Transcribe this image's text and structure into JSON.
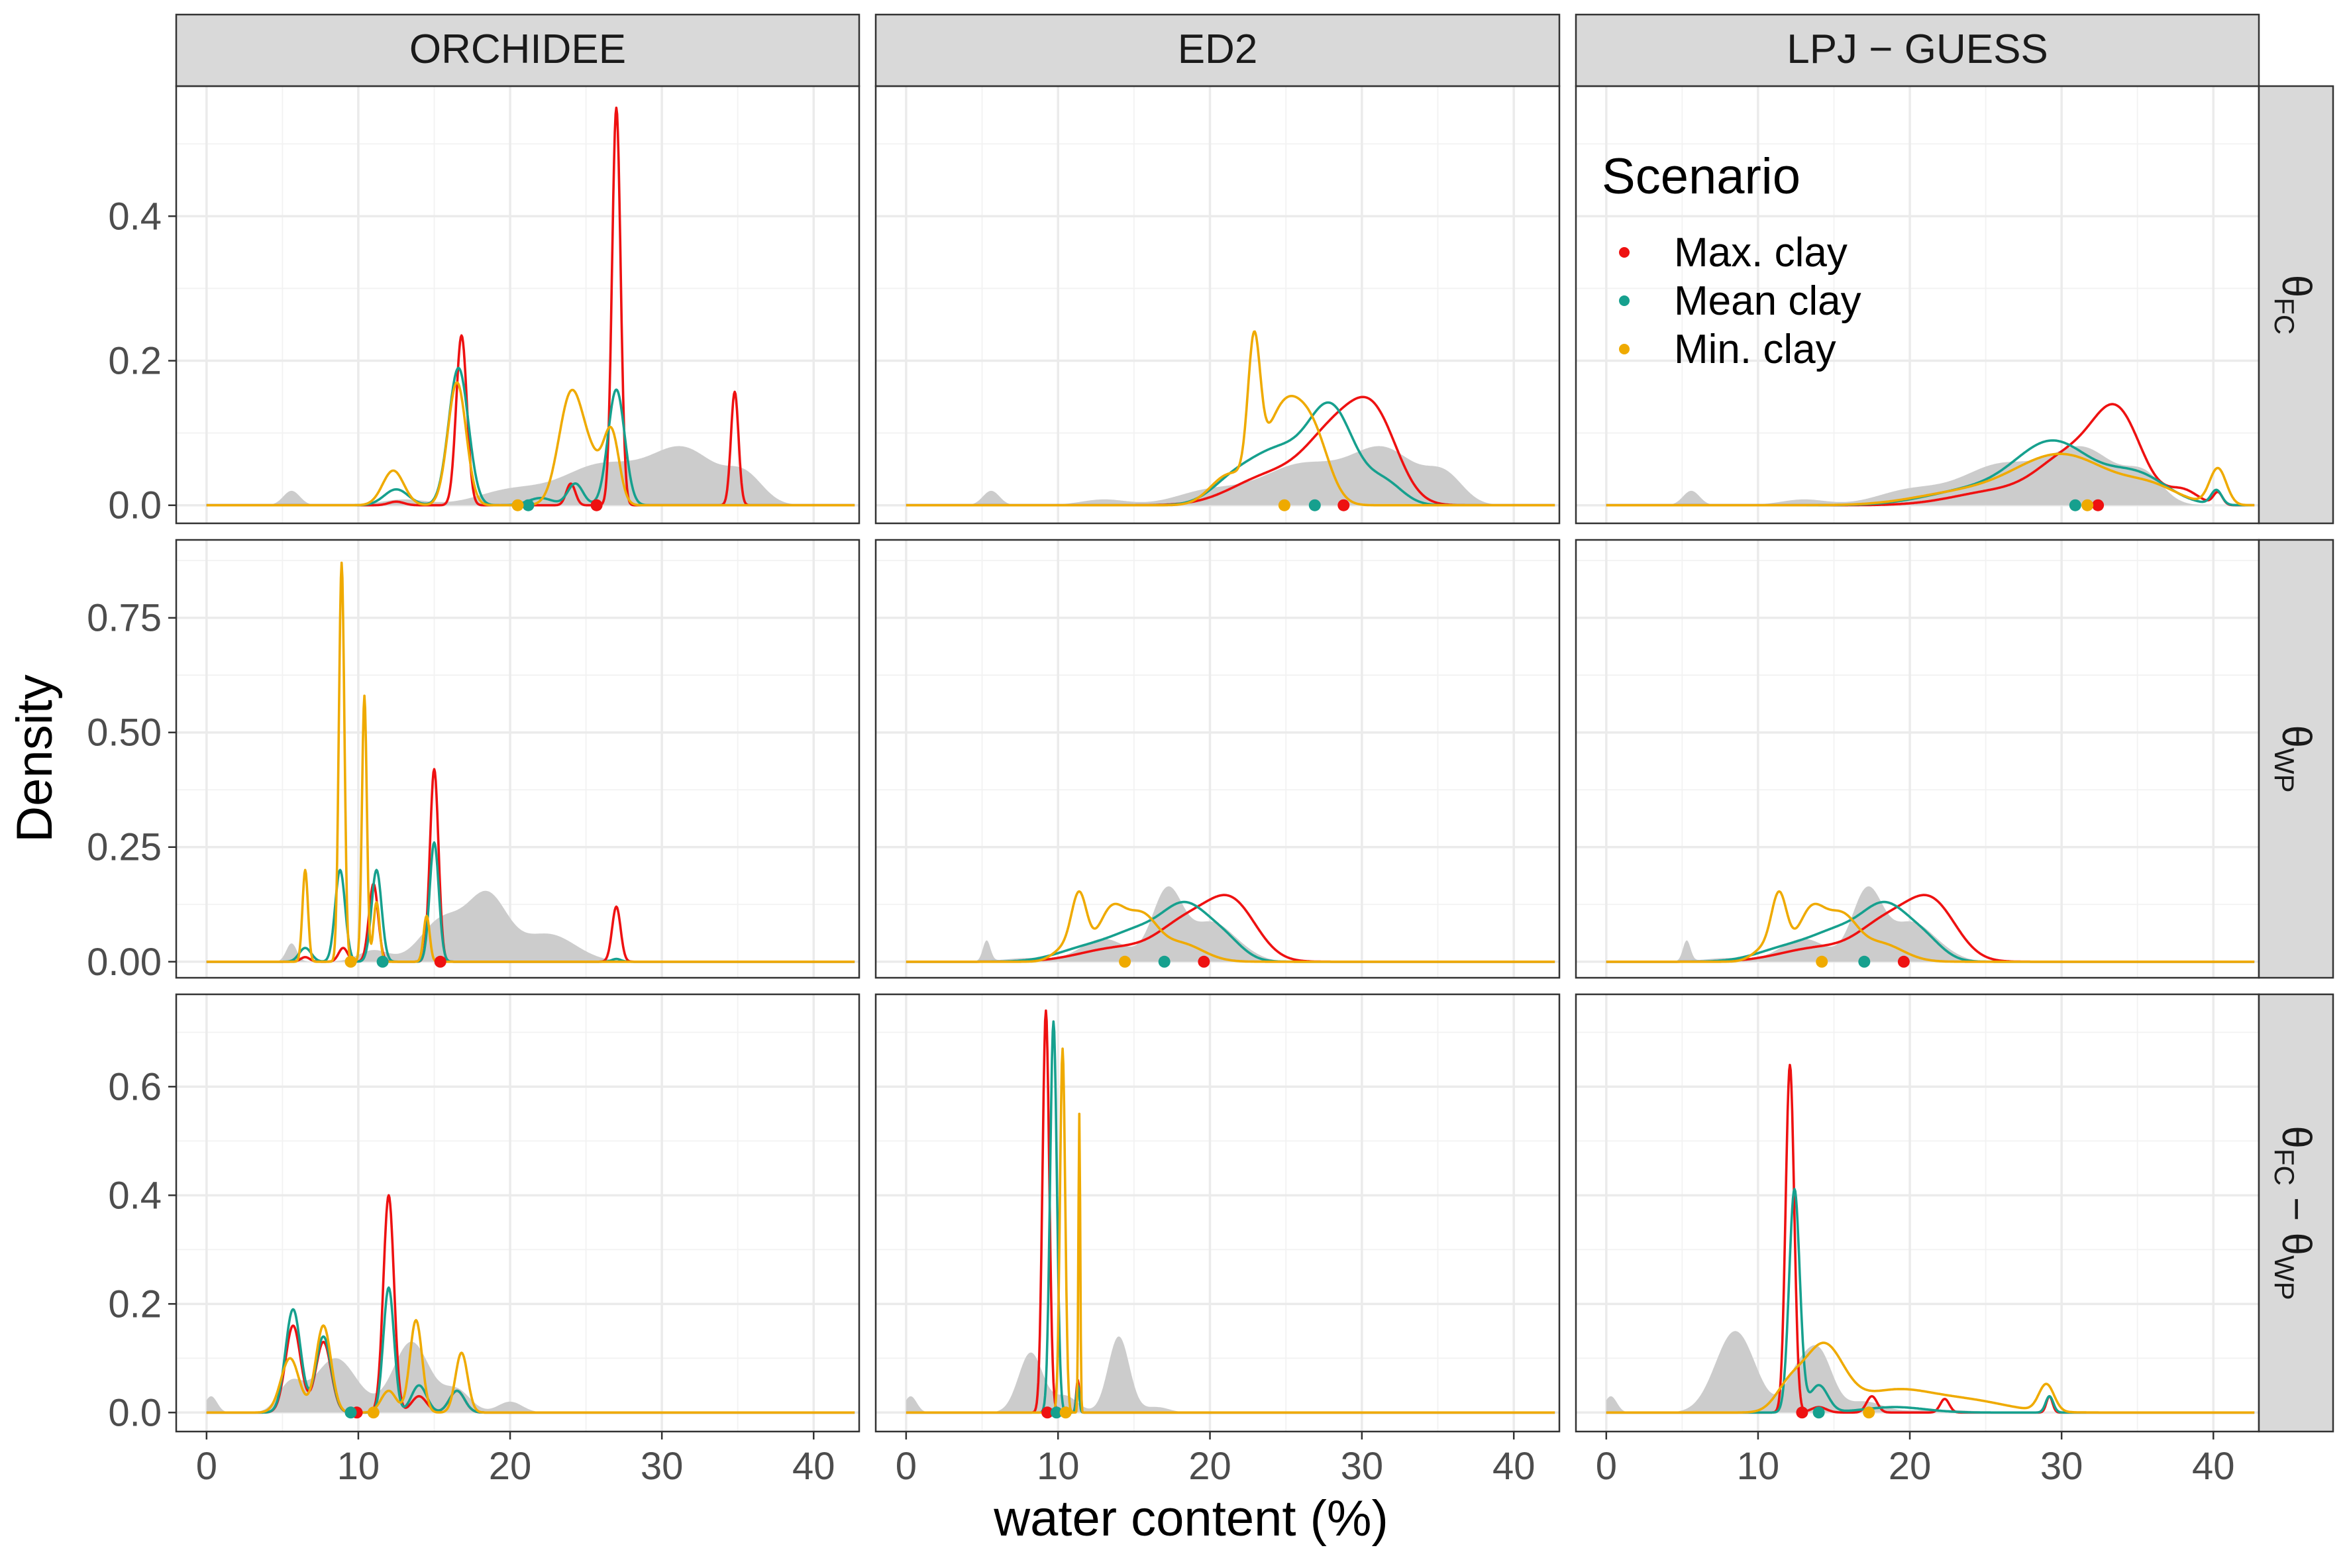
{
  "chart_data": {
    "type": "line",
    "xlabel": "water content (%)",
    "ylabel": "Density",
    "columns": [
      "ORCHIDEE",
      "ED2",
      "LPJ − GUESS"
    ],
    "rows": [
      {
        "label": "θFC",
        "base": "θ",
        "sub": "FC"
      },
      {
        "label": "θWP",
        "base": "θ",
        "sub": "WP"
      },
      {
        "label": "θFC − θWP",
        "base": "θ",
        "sub": "FC",
        "mid": " − θ",
        "sub2": "WP"
      }
    ],
    "xlim": [
      -2,
      43
    ],
    "x_ticks": [
      0,
      10,
      20,
      30,
      40
    ],
    "x_tick_labels": [
      "0",
      "10",
      "20",
      "30",
      "40"
    ],
    "y_scales": [
      {
        "ylim": [
          -0.025,
          0.58
        ],
        "ticks": [
          0.0,
          0.2,
          0.4
        ],
        "tick_labels": [
          "0.0",
          "0.2",
          "0.4"
        ],
        "minor": [
          0.1,
          0.3,
          0.5
        ]
      },
      {
        "ylim": [
          -0.035,
          0.92
        ],
        "ticks": [
          0.0,
          0.25,
          0.5,
          0.75
        ],
        "tick_labels": [
          "0.00",
          "0.25",
          "0.50",
          "0.75"
        ],
        "minor": [
          0.125,
          0.375,
          0.625,
          0.875
        ]
      },
      {
        "ylim": [
          -0.035,
          0.77
        ],
        "ticks": [
          0.0,
          0.2,
          0.4,
          0.6
        ],
        "tick_labels": [
          "0.0",
          "0.2",
          "0.4",
          "0.6"
        ],
        "minor": [
          0.1,
          0.3,
          0.5,
          0.7
        ]
      }
    ],
    "legend": {
      "title": "Scenario",
      "position": "inside, top-right panel",
      "items": [
        {
          "label": "Max. clay",
          "color": "#ee1111"
        },
        {
          "label": "Mean clay",
          "color": "#16a08e"
        },
        {
          "label": "Min. clay",
          "color": "#efaa00"
        }
      ]
    },
    "colors": {
      "max": "#ee1111",
      "mean": "#16a08e",
      "min": "#efaa00",
      "reference": "#cccccc"
    },
    "panels": [
      {
        "col": 0,
        "row": 0,
        "reference": [
          [
            5.6,
            0.02,
            0.55
          ],
          [
            13,
            0.008,
            1.5
          ],
          [
            20,
            0.02,
            2.2
          ],
          [
            26,
            0.055,
            2.6
          ],
          [
            31.5,
            0.075,
            2.2
          ],
          [
            35.5,
            0.035,
            1.2
          ]
        ],
        "max": [
          [
            12.5,
            0.005,
            0.5
          ],
          [
            16.8,
            0.235,
            0.35
          ],
          [
            24,
            0.03,
            0.3
          ],
          [
            27,
            0.55,
            0.28
          ],
          [
            34.8,
            0.157,
            0.25
          ]
        ],
        "mean": [
          [
            12.5,
            0.022,
            0.8
          ],
          [
            16.6,
            0.19,
            0.65
          ],
          [
            22,
            0.01,
            0.8
          ],
          [
            24.3,
            0.03,
            0.5
          ],
          [
            27,
            0.16,
            0.55
          ]
        ],
        "min": [
          [
            12.3,
            0.048,
            0.7
          ],
          [
            16.5,
            0.17,
            0.6
          ],
          [
            24,
            0.15,
            0.8
          ],
          [
            25.5,
            0.05,
            0.8
          ],
          [
            26.7,
            0.09,
            0.5
          ]
        ],
        "markers": [
          {
            "series": "max",
            "x": 25.7
          },
          {
            "series": "mean",
            "x": 21.2
          },
          {
            "series": "min",
            "x": 20.5
          }
        ]
      },
      {
        "col": 1,
        "row": 0,
        "reference": [
          [
            5.6,
            0.02,
            0.55
          ],
          [
            13,
            0.008,
            1.5
          ],
          [
            20,
            0.02,
            2.2
          ],
          [
            26,
            0.055,
            2.6
          ],
          [
            31.5,
            0.075,
            2.2
          ],
          [
            35.5,
            0.035,
            1.2
          ]
        ],
        "max": [
          [
            24,
            0.04,
            2.5
          ],
          [
            28.5,
            0.1,
            2.0
          ],
          [
            31,
            0.09,
            1.5
          ]
        ],
        "mean": [
          [
            21.5,
            0.03,
            1.5
          ],
          [
            24.5,
            0.07,
            1.8
          ],
          [
            28,
            0.13,
            1.5
          ],
          [
            31.5,
            0.03,
            1.2
          ]
        ],
        "min": [
          [
            21.2,
            0.04,
            1.2
          ],
          [
            22.9,
            0.18,
            0.4
          ],
          [
            25,
            0.14,
            1.4
          ],
          [
            27,
            0.06,
            1.0
          ]
        ],
        "markers": [
          {
            "series": "max",
            "x": 28.8
          },
          {
            "series": "mean",
            "x": 26.9
          },
          {
            "series": "min",
            "x": 24.9
          }
        ]
      },
      {
        "col": 2,
        "row": 0,
        "reference": [
          [
            5.6,
            0.02,
            0.55
          ],
          [
            13,
            0.008,
            1.5
          ],
          [
            20,
            0.02,
            2.2
          ],
          [
            26,
            0.055,
            2.6
          ],
          [
            31.5,
            0.075,
            2.2
          ],
          [
            35.5,
            0.035,
            1.2
          ]
        ],
        "max": [
          [
            26,
            0.02,
            3.0
          ],
          [
            30.5,
            0.06,
            2.0
          ],
          [
            33.7,
            0.12,
            1.6
          ],
          [
            38,
            0.02,
            1.0
          ],
          [
            40.3,
            0.017,
            0.3
          ]
        ],
        "mean": [
          [
            24,
            0.02,
            3.0
          ],
          [
            29.5,
            0.085,
            2.5
          ],
          [
            35,
            0.04,
            2.0
          ],
          [
            40.2,
            0.02,
            0.35
          ]
        ],
        "min": [
          [
            23,
            0.015,
            3.0
          ],
          [
            30,
            0.07,
            3.2
          ],
          [
            36,
            0.02,
            1.8
          ],
          [
            40.3,
            0.05,
            0.55
          ]
        ],
        "markers": [
          {
            "series": "max",
            "x": 32.4
          },
          {
            "series": "mean",
            "x": 30.9
          },
          {
            "series": "min",
            "x": 31.7
          }
        ]
      },
      {
        "col": 0,
        "row": 1,
        "reference": [
          [
            5.6,
            0.04,
            0.35
          ],
          [
            11,
            0.025,
            1.0
          ],
          [
            15.5,
            0.09,
            1.4
          ],
          [
            18.5,
            0.14,
            1.3
          ],
          [
            22.5,
            0.06,
            1.8
          ]
        ],
        "max": [
          [
            6.5,
            0.01,
            0.3
          ],
          [
            9,
            0.03,
            0.3
          ],
          [
            11,
            0.17,
            0.3
          ],
          [
            15,
            0.42,
            0.28
          ],
          [
            27,
            0.12,
            0.28
          ]
        ],
        "mean": [
          [
            6.5,
            0.03,
            0.4
          ],
          [
            8.8,
            0.2,
            0.33
          ],
          [
            11.2,
            0.2,
            0.33
          ],
          [
            15,
            0.26,
            0.3
          ],
          [
            27,
            0.006,
            0.3
          ]
        ],
        "min": [
          [
            6.5,
            0.2,
            0.18
          ],
          [
            8.9,
            0.87,
            0.18
          ],
          [
            10.4,
            0.58,
            0.16
          ],
          [
            11.2,
            0.13,
            0.2
          ],
          [
            14.5,
            0.1,
            0.2
          ]
        ],
        "markers": [
          {
            "series": "max",
            "x": 15.4
          },
          {
            "series": "mean",
            "x": 11.6
          },
          {
            "series": "min",
            "x": 9.5
          }
        ]
      },
      {
        "col": 1,
        "row": 1,
        "reference": [
          [
            5.3,
            0.045,
            0.25
          ],
          [
            8,
            0.008,
            1.5
          ],
          [
            13,
            0.05,
            1.5
          ],
          [
            17.2,
            0.155,
            1.0
          ],
          [
            20,
            0.08,
            1.3
          ],
          [
            22,
            0.02,
            1.2
          ]
        ],
        "max": [
          [
            14,
            0.03,
            2.5
          ],
          [
            18.5,
            0.08,
            1.8
          ],
          [
            21.5,
            0.12,
            1.6
          ]
        ],
        "mean": [
          [
            12,
            0.03,
            2.0
          ],
          [
            15.5,
            0.06,
            1.8
          ],
          [
            18.5,
            0.11,
            1.5
          ],
          [
            21,
            0.04,
            1.2
          ]
        ],
        "min": [
          [
            10.5,
            0.03,
            0.8
          ],
          [
            11.4,
            0.13,
            0.5
          ],
          [
            13.5,
            0.11,
            0.9
          ],
          [
            15.5,
            0.09,
            1.0
          ],
          [
            18,
            0.04,
            1.5
          ]
        ],
        "markers": [
          {
            "series": "max",
            "x": 19.6
          },
          {
            "series": "mean",
            "x": 17.0
          },
          {
            "series": "min",
            "x": 14.4
          }
        ]
      },
      {
        "col": 2,
        "row": 1,
        "reference": [
          [
            5.3,
            0.045,
            0.25
          ],
          [
            8,
            0.008,
            1.5
          ],
          [
            13,
            0.05,
            1.5
          ],
          [
            17.2,
            0.155,
            1.0
          ],
          [
            20,
            0.08,
            1.3
          ],
          [
            22,
            0.02,
            1.2
          ]
        ],
        "max": [
          [
            14,
            0.03,
            2.5
          ],
          [
            18.5,
            0.08,
            1.8
          ],
          [
            21.5,
            0.12,
            1.6
          ]
        ],
        "mean": [
          [
            12,
            0.03,
            2.0
          ],
          [
            15.5,
            0.06,
            1.8
          ],
          [
            18.5,
            0.11,
            1.5
          ],
          [
            21,
            0.04,
            1.2
          ]
        ],
        "min": [
          [
            10.5,
            0.03,
            0.8
          ],
          [
            11.4,
            0.13,
            0.5
          ],
          [
            13.5,
            0.11,
            0.9
          ],
          [
            15.5,
            0.09,
            1.0
          ],
          [
            18,
            0.04,
            1.5
          ]
        ],
        "markers": [
          {
            "series": "max",
            "x": 19.6
          },
          {
            "series": "mean",
            "x": 17.0
          },
          {
            "series": "min",
            "x": 14.2
          }
        ]
      },
      {
        "col": 0,
        "row": 2,
        "reference": [
          [
            0.3,
            0.03,
            0.4
          ],
          [
            5.5,
            0.05,
            0.8
          ],
          [
            8.5,
            0.1,
            1.4
          ],
          [
            13.5,
            0.13,
            1.2
          ],
          [
            16.5,
            0.04,
            0.9
          ],
          [
            20,
            0.02,
            0.8
          ]
        ],
        "max": [
          [
            5.7,
            0.16,
            0.5
          ],
          [
            7.7,
            0.13,
            0.5
          ],
          [
            12,
            0.4,
            0.35
          ],
          [
            14,
            0.03,
            0.5
          ],
          [
            16.5,
            0.04,
            0.5
          ]
        ],
        "mean": [
          [
            5.7,
            0.19,
            0.5
          ],
          [
            7.7,
            0.14,
            0.5
          ],
          [
            12,
            0.23,
            0.35
          ],
          [
            14,
            0.05,
            0.5
          ],
          [
            16.5,
            0.04,
            0.5
          ]
        ],
        "min": [
          [
            5.5,
            0.1,
            0.6
          ],
          [
            7.7,
            0.16,
            0.5
          ],
          [
            12,
            0.04,
            0.5
          ],
          [
            13.8,
            0.17,
            0.4
          ],
          [
            16.8,
            0.11,
            0.4
          ]
        ],
        "markers": [
          {
            "series": "max",
            "x": 9.9
          },
          {
            "series": "mean",
            "x": 9.5
          },
          {
            "series": "min",
            "x": 11.0
          }
        ]
      },
      {
        "col": 1,
        "row": 2,
        "reference": [
          [
            0.3,
            0.03,
            0.4
          ],
          [
            8.2,
            0.11,
            0.8
          ],
          [
            10.5,
            0.03,
            0.8
          ],
          [
            14,
            0.14,
            0.7
          ],
          [
            16.5,
            0.01,
            0.8
          ]
        ],
        "max": [
          [
            9.2,
            0.74,
            0.22
          ],
          [
            11.3,
            0.06,
            0.1
          ]
        ],
        "mean": [
          [
            9.7,
            0.72,
            0.22
          ],
          [
            11.3,
            0.05,
            0.1
          ]
        ],
        "min": [
          [
            10.3,
            0.67,
            0.17
          ],
          [
            11.4,
            0.55,
            0.06
          ]
        ],
        "markers": [
          {
            "series": "max",
            "x": 9.3
          },
          {
            "series": "mean",
            "x": 9.9
          },
          {
            "series": "min",
            "x": 10.5
          }
        ]
      },
      {
        "col": 2,
        "row": 2,
        "reference": [
          [
            0.3,
            0.03,
            0.4
          ],
          [
            8.5,
            0.15,
            1.3
          ],
          [
            12.5,
            0.06,
            0.8
          ],
          [
            14,
            0.11,
            0.9
          ],
          [
            17,
            0.02,
            1.2
          ],
          [
            22,
            0.005,
            2.0
          ]
        ],
        "max": [
          [
            12.1,
            0.64,
            0.28
          ],
          [
            14,
            0.01,
            0.5
          ],
          [
            17.5,
            0.03,
            0.35
          ],
          [
            22.3,
            0.025,
            0.3
          ],
          [
            29.2,
            0.03,
            0.2
          ]
        ],
        "mean": [
          [
            12.4,
            0.41,
            0.35
          ],
          [
            14,
            0.05,
            0.6
          ],
          [
            19,
            0.01,
            2.0
          ],
          [
            29.2,
            0.03,
            0.25
          ]
        ],
        "min": [
          [
            12,
            0.04,
            0.9
          ],
          [
            14.3,
            0.12,
            1.3
          ],
          [
            19,
            0.04,
            2.5
          ],
          [
            24,
            0.02,
            2.5
          ],
          [
            29,
            0.05,
            0.5
          ]
        ],
        "markers": [
          {
            "series": "max",
            "x": 12.9
          },
          {
            "series": "mean",
            "x": 14.0
          },
          {
            "series": "min",
            "x": 17.3
          }
        ]
      }
    ]
  }
}
